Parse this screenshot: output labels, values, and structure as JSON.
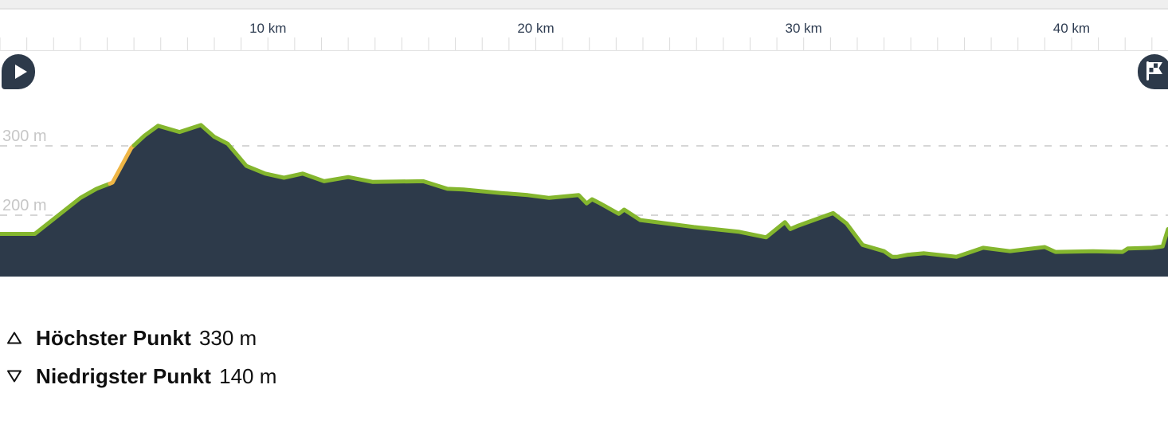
{
  "chart_data": {
    "type": "area",
    "x_unit": "km",
    "y_unit": "m",
    "xlim": [
      0,
      43.6
    ],
    "ylim": [
      110,
      440
    ],
    "grid": "dashed-horizontal",
    "legend": "none",
    "x_ticks": [
      {
        "km": 10,
        "label": "10 km"
      },
      {
        "km": 20,
        "label": "20 km"
      },
      {
        "km": 30,
        "label": "30 km"
      },
      {
        "km": 40,
        "label": "40 km"
      }
    ],
    "x_minor_tick_interval_km": 1,
    "y_gridlines": [
      {
        "value": 300,
        "label": "300 m"
      },
      {
        "value": 200,
        "label": "200 m"
      }
    ],
    "profile": [
      [
        0,
        173
      ],
      [
        1.3,
        173
      ],
      [
        3.0,
        225
      ],
      [
        3.6,
        238
      ],
      [
        4.2,
        247
      ],
      [
        4.9,
        297
      ],
      [
        5.4,
        315
      ],
      [
        5.9,
        329
      ],
      [
        6.7,
        320
      ],
      [
        7.5,
        330
      ],
      [
        8.0,
        313
      ],
      [
        8.5,
        303
      ],
      [
        9.2,
        271
      ],
      [
        9.9,
        260
      ],
      [
        10.6,
        254
      ],
      [
        11.3,
        260
      ],
      [
        12.1,
        249
      ],
      [
        13.0,
        255
      ],
      [
        13.9,
        248
      ],
      [
        15.8,
        249
      ],
      [
        16.7,
        238
      ],
      [
        17.3,
        237
      ],
      [
        18.7,
        232
      ],
      [
        19.7,
        229
      ],
      [
        20.5,
        225
      ],
      [
        21.6,
        229
      ],
      [
        21.9,
        217
      ],
      [
        22.1,
        223
      ],
      [
        22.4,
        217
      ],
      [
        23.1,
        202
      ],
      [
        23.3,
        208
      ],
      [
        23.9,
        193
      ],
      [
        25.9,
        183
      ],
      [
        27.6,
        176
      ],
      [
        28.6,
        168
      ],
      [
        29.3,
        190
      ],
      [
        29.5,
        180
      ],
      [
        29.8,
        185
      ],
      [
        31.1,
        203
      ],
      [
        31.6,
        188
      ],
      [
        32.2,
        157
      ],
      [
        33.0,
        148
      ],
      [
        33.3,
        140
      ],
      [
        33.5,
        140
      ],
      [
        33.9,
        143
      ],
      [
        34.5,
        145
      ],
      [
        35.7,
        140
      ],
      [
        36.7,
        153
      ],
      [
        37.7,
        148
      ],
      [
        39.0,
        154
      ],
      [
        39.4,
        147
      ],
      [
        40.8,
        148
      ],
      [
        41.9,
        147
      ],
      [
        42.1,
        152
      ],
      [
        43.0,
        153
      ],
      [
        43.4,
        155
      ],
      [
        43.6,
        180
      ]
    ],
    "segments": [
      {
        "from_km": 0,
        "to_km": 4.1,
        "color": "#84b62e"
      },
      {
        "from_km": 4.1,
        "to_km": 5.0,
        "color": "#eeb545"
      },
      {
        "from_km": 5.0,
        "to_km": 43.6,
        "color": "#84b62e"
      }
    ],
    "colors": {
      "area_fill": "#2d3a4a",
      "line_green": "#84b62e",
      "line_yellow": "#eeb545",
      "gridline": "#d6d6d6",
      "tick": "#dbdbdb",
      "axis_line": "#e3e3e3",
      "axis_label": "#2e3c51",
      "grid_label": "#c7c7c7"
    }
  },
  "markers": {
    "color": "#2d3a4a",
    "start": "play-icon",
    "finish": "checkered-flag-icon"
  },
  "stats": [
    {
      "icon": "triangle-up",
      "label": "Höchster Punkt",
      "value": "330 m"
    },
    {
      "icon": "triangle-down",
      "label": "Niedrigster Punkt",
      "value": "140 m"
    }
  ]
}
